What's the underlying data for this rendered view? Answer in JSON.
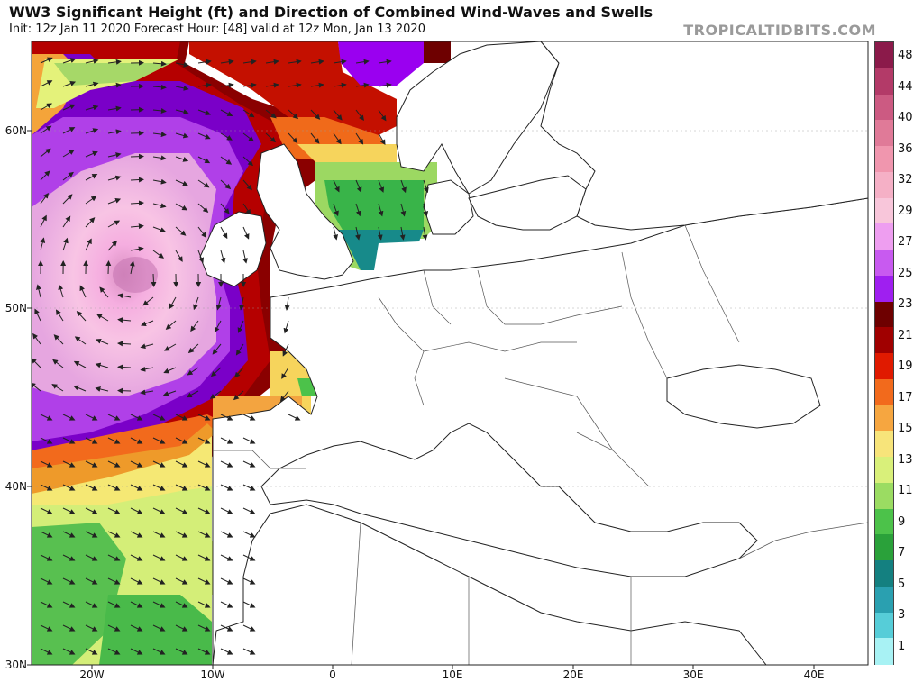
{
  "header": {
    "title": "WW3 Significant Height (ft) and Direction of Combined Wind-Waves and Swells",
    "subtitle": "Init: 12z Jan 11 2020   Forecast Hour: [48]   valid at 12z Mon, Jan 13 2020",
    "brand": "TROPICALTIDBITS.COM"
  },
  "axes": {
    "lat_labels": [
      "30N",
      "40N",
      "50N",
      "60N"
    ],
    "lon_labels": [
      "20W",
      "10W",
      "0",
      "10E",
      "20E",
      "30E",
      "40E"
    ]
  },
  "colorbar": {
    "unit": "ft",
    "labels": [
      "48",
      "44",
      "40",
      "36",
      "32",
      "29",
      "27",
      "25",
      "23",
      "21",
      "19",
      "17",
      "15",
      "13",
      "11",
      "9",
      "7",
      "5",
      "3",
      "1"
    ],
    "colors": [
      "#8b1a4a",
      "#b33a68",
      "#cc5a82",
      "#e07a98",
      "#f096ae",
      "#f5b0c6",
      "#f8c6da",
      "#ee9ef0",
      "#c85af0",
      "#9f1ff0",
      "#6e0000",
      "#a00000",
      "#e01a00",
      "#f26a1c",
      "#f6a640",
      "#f7e47a",
      "#d9f07a",
      "#9bdc62",
      "#4cc24a",
      "#2aa13a",
      "#148080",
      "#2aa0b0",
      "#56cdd8",
      "#a8f2f4"
    ]
  },
  "map": {
    "wave_max_location": "west of Ireland",
    "wave_max_color": "#f7aedc"
  }
}
